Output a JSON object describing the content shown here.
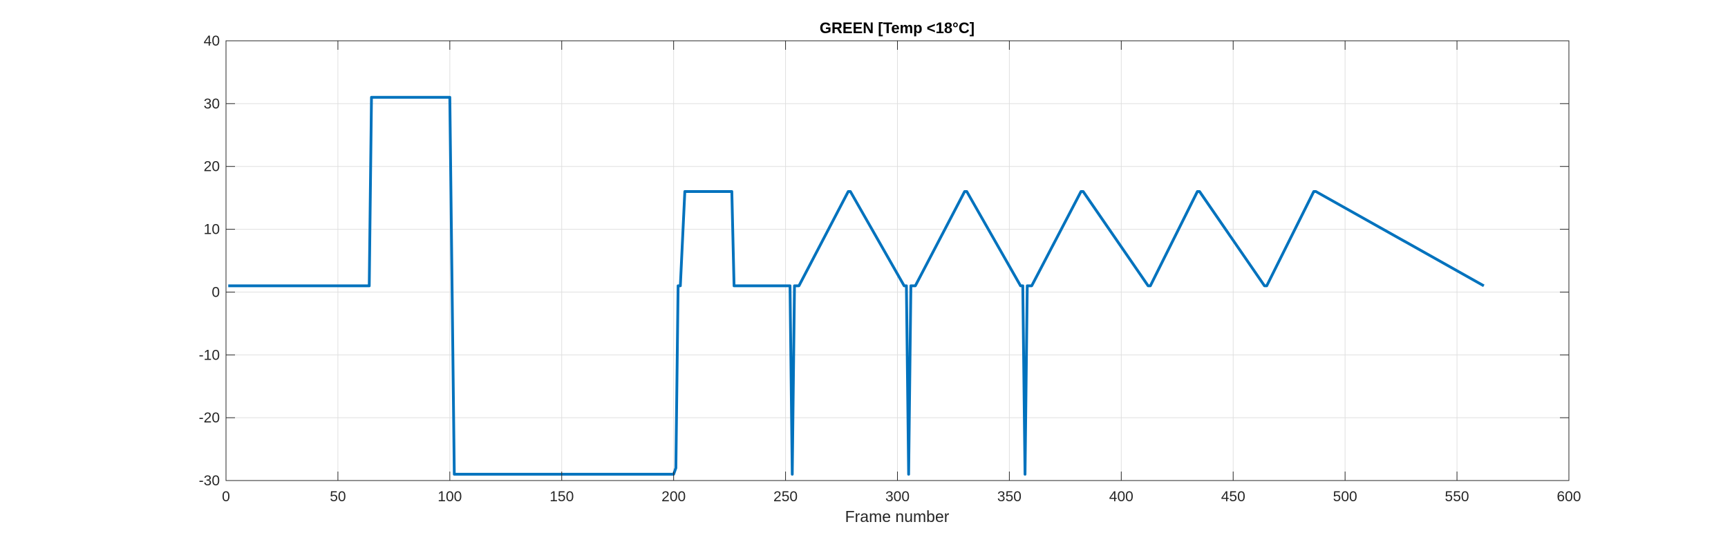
{
  "chart_data": {
    "type": "line",
    "title": "GREEN [Temp <18°C]",
    "xlabel": "Frame number",
    "ylabel": "",
    "xlim": [
      0,
      600
    ],
    "ylim": [
      -30,
      40
    ],
    "xticks": [
      0,
      50,
      100,
      150,
      200,
      250,
      300,
      350,
      400,
      450,
      500,
      550,
      600
    ],
    "yticks": [
      -30,
      -20,
      -10,
      0,
      10,
      20,
      30,
      40
    ],
    "xtick_labels": [
      "0",
      "50",
      "100",
      "150",
      "200",
      "250",
      "300",
      "350",
      "400",
      "450",
      "500",
      "550",
      "600"
    ],
    "ytick_labels": [
      "-30",
      "-20",
      "-10",
      "0",
      "10",
      "20",
      "30",
      "40"
    ],
    "grid": true,
    "legend": "none",
    "line_color": "#0072BD",
    "series": [
      {
        "x": [
          1,
          64,
          65,
          100,
          102,
          200,
          201,
          202,
          203,
          205,
          226,
          227,
          251,
          252,
          253,
          254,
          256,
          278,
          279,
          303,
          304,
          305,
          306,
          308,
          330,
          331,
          355,
          356,
          357,
          358,
          360,
          382,
          383,
          412,
          413,
          434,
          435,
          464,
          465,
          486,
          487,
          562
        ],
        "y": [
          1,
          1,
          31,
          31,
          -29,
          -29,
          -28,
          1,
          1,
          16,
          16,
          1,
          1,
          1,
          -29,
          1,
          1,
          16,
          16,
          1,
          1,
          -29,
          1,
          1,
          16,
          16,
          1,
          1,
          -29,
          1,
          1,
          16,
          16,
          1,
          1,
          16,
          16,
          1,
          1,
          16,
          16,
          1
        ]
      }
    ]
  }
}
